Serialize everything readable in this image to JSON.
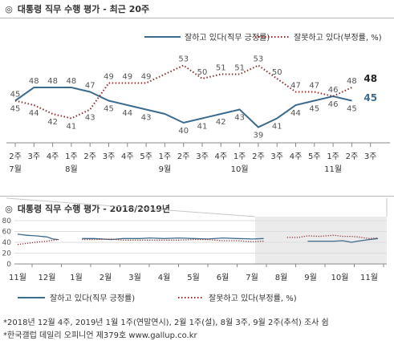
{
  "header": {
    "bullet": "◎",
    "title_top": "대통령 직무 수행 평가 - 최근 20주",
    "title_bottom": "대통령 직무 수행 평가 - 2018/2019년"
  },
  "legend": {
    "approve": "잘하고 있다(직무 긍정률)",
    "disapprove": "잘못하고 있다(부정률, %)"
  },
  "colors": {
    "approve": "#3d6b8e",
    "disapprove": "#8b2e2e",
    "grey_band": "#ebebeb",
    "grid": "#dddddd"
  },
  "chart_data": [
    {
      "type": "line",
      "title": "대통령 직무 수행 평가 - 최근 20주",
      "categories": [
        "2주",
        "3주",
        "4주",
        "1주",
        "2주",
        "3주",
        "4주",
        "5주",
        "1주",
        "2주",
        "3주",
        "4주",
        "1주",
        "2주",
        "3주",
        "4주",
        "5주",
        "1주",
        "2주",
        "3주"
      ],
      "month_labels": [
        {
          "index": 0,
          "label": "7월"
        },
        {
          "index": 3,
          "label": "8월"
        },
        {
          "index": 8,
          "label": "9월"
        },
        {
          "index": 12,
          "label": "10월"
        },
        {
          "index": 17,
          "label": "11월"
        }
      ],
      "series": [
        {
          "name": "잘하고 있다(직무 긍정률)",
          "key": "approve",
          "values": [
            45,
            48,
            48,
            48,
            47,
            45,
            44,
            43,
            42,
            40,
            41,
            42,
            43,
            39,
            41,
            44,
            45,
            46,
            45,
            null
          ],
          "labels": [
            "45",
            "48",
            "48",
            "48",
            "47",
            "45",
            "44",
            "43",
            "",
            "40",
            "41",
            "42",
            "43",
            "39",
            "41",
            "44",
            "45",
            "46",
            "45",
            ""
          ]
        },
        {
          "name": "잘못하고 있다(부정률, %)",
          "key": "disapprove",
          "values": [
            45,
            44,
            42,
            41,
            43,
            49,
            49,
            49,
            51,
            53,
            50,
            51,
            51,
            53,
            50,
            47,
            47,
            46,
            48,
            null
          ],
          "labels": [
            "45",
            "44",
            "42",
            "41",
            "43",
            "49",
            "49",
            "49",
            "",
            "53",
            "50",
            "51",
            "51",
            "53",
            "50",
            "47",
            "47",
            "46",
            "48",
            ""
          ]
        }
      ],
      "emphasized_labels": [
        "48",
        "45"
      ]
    },
    {
      "type": "line",
      "title": "대통령 직무 수행 평가 - 2018/2019년",
      "months": [
        "11월",
        "12월",
        "1월",
        "2월",
        "3월",
        "4월",
        "5월",
        "6월",
        "7월",
        "8월",
        "9월",
        "10월",
        "11월"
      ],
      "ylim": [
        0,
        80
      ],
      "yticks": [
        "80",
        "60",
        "40",
        "20",
        "0"
      ],
      "highlight_from_month": "7월",
      "series": [
        {
          "name": "잘하고 있다(직무 긍정률)",
          "key": "approve",
          "points": [
            [
              0,
              55
            ],
            [
              0.3,
              53
            ],
            [
              0.6,
              52
            ],
            [
              1,
              50
            ],
            [
              1.2,
              46
            ],
            [
              1.4,
              45
            ],
            [
              2.2,
              47
            ],
            [
              2.6,
              47
            ],
            [
              3.2,
              45
            ],
            [
              3.6,
              47
            ],
            [
              4.2,
              47
            ],
            [
              4.5,
              48
            ],
            [
              5,
              47
            ],
            [
              5.5,
              48
            ],
            [
              6,
              47
            ],
            [
              6.5,
              46
            ],
            [
              7,
              48
            ],
            [
              7.5,
              47
            ],
            [
              8,
              46
            ],
            [
              8.4,
              47
            ],
            [
              9.9,
              42
            ],
            [
              10.3,
              42
            ],
            [
              10.8,
              42
            ],
            [
              11.1,
              43
            ],
            [
              11.4,
              40
            ],
            [
              11.6,
              42
            ],
            [
              12,
              45
            ],
            [
              12.3,
              47
            ]
          ],
          "gaps_after_index": [
            5,
            19
          ]
        },
        {
          "name": "잘못하고 있다(부정률, %)",
          "key": "disapprove",
          "points": [
            [
              0,
              36
            ],
            [
              0.3,
              38
            ],
            [
              0.6,
              40
            ],
            [
              1,
              42
            ],
            [
              1.2,
              44
            ],
            [
              1.4,
              45
            ],
            [
              2.2,
              45
            ],
            [
              2.6,
              45
            ],
            [
              3.2,
              46
            ],
            [
              3.6,
              44
            ],
            [
              4.2,
              44
            ],
            [
              4.5,
              44
            ],
            [
              5,
              44
            ],
            [
              5.5,
              44
            ],
            [
              6,
              45
            ],
            [
              6.5,
              45
            ],
            [
              7,
              43
            ],
            [
              7.5,
              43
            ],
            [
              8,
              41
            ],
            [
              8.4,
              42
            ],
            [
              9.2,
              49
            ],
            [
              9.6,
              49
            ],
            [
              9.9,
              52
            ],
            [
              10.3,
              51
            ],
            [
              10.8,
              53
            ],
            [
              11.1,
              51
            ],
            [
              11.4,
              51
            ],
            [
              11.6,
              50
            ],
            [
              12,
              47
            ],
            [
              12.3,
              48
            ]
          ],
          "gaps_after_index": [
            5,
            19
          ]
        }
      ]
    }
  ],
  "footnotes": [
    "*2018년 12월 4주, 2019년 1월 1주(연말연시), 2월 1주(설), 8월 3주, 9월 2주(추석) 조사 쉼",
    "*한국갤럽 데일리 오피니언 제379호 www.gallup.co.kr"
  ]
}
